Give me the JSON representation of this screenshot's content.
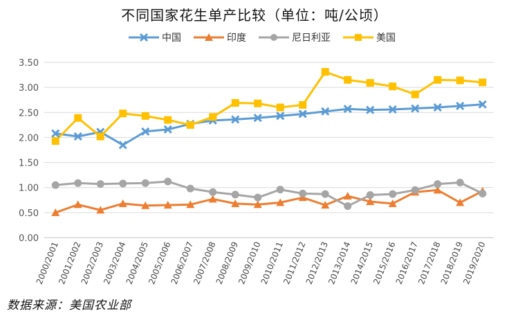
{
  "chart_data": {
    "type": "line",
    "title": "不同国家花生单产比较（单位：吨/公顷）",
    "source_note": "数据来源：美国农业部",
    "categories": [
      "2000/2001",
      "2001/2002",
      "2002/2003",
      "2003/2004",
      "2004/2005",
      "2005/2006",
      "2006/2007",
      "2007/2008",
      "2008/2009",
      "2009/2010",
      "2010/2011",
      "2011/2012",
      "2012/2013",
      "2013/2014",
      "2014/2015",
      "2015/2016",
      "2016/2017",
      "2017/2018",
      "2018/2019",
      "2019/2020"
    ],
    "y_ticks": [
      "0.00",
      "0.50",
      "1.00",
      "1.50",
      "2.00",
      "2.50",
      "3.00",
      "3.50"
    ],
    "ylim": [
      0,
      3.5
    ],
    "grid": "horizontal",
    "legend_position": "top",
    "series": [
      {
        "name": "中国",
        "color": "#5b9bd5",
        "marker": "x",
        "values": [
          2.08,
          2.02,
          2.11,
          1.85,
          2.12,
          2.16,
          2.27,
          2.34,
          2.36,
          2.39,
          2.43,
          2.47,
          2.52,
          2.57,
          2.55,
          2.56,
          2.58,
          2.6,
          2.63,
          2.66
        ]
      },
      {
        "name": "印度",
        "color": "#ed7d31",
        "marker": "triangle",
        "values": [
          0.5,
          0.66,
          0.55,
          0.68,
          0.64,
          0.65,
          0.66,
          0.77,
          0.68,
          0.66,
          0.7,
          0.8,
          0.65,
          0.83,
          0.72,
          0.68,
          0.91,
          0.95,
          0.7,
          0.93
        ]
      },
      {
        "name": "尼日利亚",
        "color": "#a5a5a5",
        "marker": "circle",
        "values": [
          1.05,
          1.09,
          1.07,
          1.08,
          1.09,
          1.12,
          0.98,
          0.91,
          0.86,
          0.8,
          0.96,
          0.88,
          0.87,
          0.63,
          0.85,
          0.87,
          0.95,
          1.07,
          1.1,
          0.88
        ]
      },
      {
        "name": "美国",
        "color": "#ffc000",
        "marker": "square",
        "values": [
          1.93,
          2.39,
          2.02,
          2.48,
          2.43,
          2.35,
          2.25,
          2.41,
          2.69,
          2.68,
          2.6,
          2.65,
          3.31,
          3.15,
          3.09,
          3.02,
          2.86,
          3.15,
          3.14,
          3.1
        ]
      }
    ]
  }
}
